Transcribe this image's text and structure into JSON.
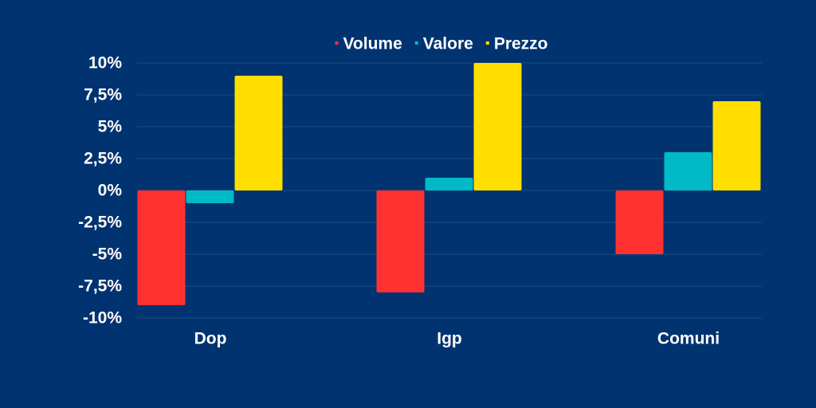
{
  "chart_data": {
    "type": "bar",
    "categories": [
      "Dop",
      "Igp",
      "Comuni"
    ],
    "series": [
      {
        "name": "Volume",
        "color": "#ff3131",
        "values": [
          -9,
          -8,
          -5
        ]
      },
      {
        "name": "Valore",
        "color": "#00bac6",
        "values": [
          -1,
          1,
          3
        ]
      },
      {
        "name": "Prezzo",
        "color": "#ffde00",
        "values": [
          9,
          10,
          7
        ]
      }
    ],
    "ylim": [
      -10,
      10
    ],
    "yticks": [
      {
        "value": -10,
        "label": "-10%"
      },
      {
        "value": -7.5,
        "label": "-7,5%"
      },
      {
        "value": -5,
        "label": "-5%"
      },
      {
        "value": -2.5,
        "label": "-2,5%"
      },
      {
        "value": 0,
        "label": "0%"
      },
      {
        "value": 2.5,
        "label": "2,5%"
      },
      {
        "value": 5,
        "label": "5%"
      },
      {
        "value": 7.5,
        "label": "7,5%"
      },
      {
        "value": 10,
        "label": "10%"
      }
    ],
    "grid": true,
    "legend": "top"
  }
}
